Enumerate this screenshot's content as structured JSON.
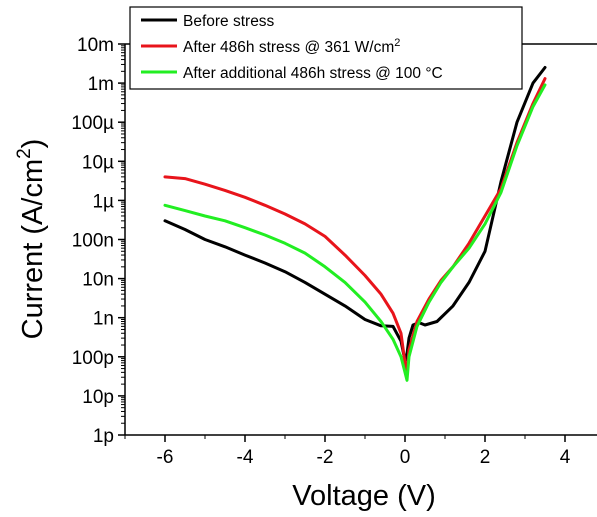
{
  "chart_data": {
    "type": "line",
    "title": "",
    "xlabel": "Voltage (V)",
    "ylabel": "Current (A/cm",
    "ylabel_sup": "2",
    "ylabel_end": ")",
    "xlim": [
      -7,
      4.8
    ],
    "ylim": [
      1e-12,
      0.01
    ],
    "yscale": "log",
    "grid": false,
    "legend_position": "top-right",
    "x_ticks": [
      {
        "value": -6,
        "label": "-6"
      },
      {
        "value": -4,
        "label": "-4"
      },
      {
        "value": -2,
        "label": "-2"
      },
      {
        "value": 0,
        "label": "0"
      },
      {
        "value": 2,
        "label": "2"
      },
      {
        "value": 4,
        "label": "4"
      }
    ],
    "y_ticks": [
      {
        "value": 1e-12,
        "label": "1p"
      },
      {
        "value": 1e-11,
        "label": "10p"
      },
      {
        "value": 1e-10,
        "label": "100p"
      },
      {
        "value": 1e-09,
        "label": "1n"
      },
      {
        "value": 1e-08,
        "label": "10n"
      },
      {
        "value": 1e-07,
        "label": "100n"
      },
      {
        "value": 1e-06,
        "label": "1µ"
      },
      {
        "value": 1e-05,
        "label": "10µ"
      },
      {
        "value": 0.0001,
        "label": "100µ"
      },
      {
        "value": 0.001,
        "label": "1m"
      },
      {
        "value": 0.01,
        "label": "10m"
      }
    ],
    "series": [
      {
        "name": "Before stress",
        "name_sup": "",
        "name_end": "",
        "color": "#000000",
        "x": [
          -6,
          -5.5,
          -5,
          -4.5,
          -4,
          -3.5,
          -3,
          -2.5,
          -2,
          -1.5,
          -1,
          -0.6,
          -0.3,
          -0.1,
          0.0,
          0.05,
          0.1,
          0.2,
          0.35,
          0.5,
          0.8,
          1.2,
          1.6,
          2.0,
          2.4,
          2.8,
          3.2,
          3.5
        ],
        "y": [
          3e-07,
          1.8e-07,
          1e-07,
          6.5e-08,
          4e-08,
          2.5e-08,
          1.5e-08,
          8e-09,
          4e-09,
          2e-09,
          9e-10,
          6.2e-10,
          6e-10,
          2.5e-10,
          8e-11,
          1.2e-10,
          3e-10,
          6.5e-10,
          7.5e-10,
          6.5e-10,
          8e-10,
          2e-09,
          8e-09,
          5e-08,
          3e-06,
          0.0001,
          0.001,
          0.0025
        ]
      },
      {
        "name": "After 486h stress @ 361 W/cm",
        "name_sup": "2",
        "name_end": "",
        "color": "#e8141b",
        "x": [
          -6,
          -5.5,
          -5,
          -4.5,
          -4,
          -3.5,
          -3,
          -2.5,
          -2,
          -1.5,
          -1,
          -0.6,
          -0.3,
          -0.1,
          0.0,
          0.05,
          0.1,
          0.3,
          0.6,
          0.9,
          1.2,
          1.6,
          2.0,
          2.4,
          2.8,
          3.2,
          3.5
        ],
        "y": [
          4e-06,
          3.6e-06,
          2.6e-06,
          1.8e-06,
          1.2e-06,
          7.5e-07,
          4.5e-07,
          2.5e-07,
          1.2e-07,
          4e-08,
          1.2e-08,
          4e-09,
          1.3e-09,
          4e-10,
          7e-11,
          4e-11,
          1.5e-10,
          8e-10,
          3e-09,
          9e-09,
          2e-08,
          8e-08,
          4e-07,
          2e-06,
          3e-05,
          0.0003,
          0.0013
        ]
      },
      {
        "name": "After additional 486h stress @ 100 °C",
        "name_sup": "",
        "name_end": "",
        "color": "#22ee22",
        "x": [
          -6,
          -5.5,
          -5,
          -4.5,
          -4,
          -3.5,
          -3,
          -2.5,
          -2,
          -1.5,
          -1,
          -0.6,
          -0.3,
          -0.1,
          0.0,
          0.05,
          0.1,
          0.3,
          0.6,
          0.9,
          1.2,
          1.6,
          2.0,
          2.4,
          2.8,
          3.2,
          3.5
        ],
        "y": [
          7.5e-07,
          5.5e-07,
          4e-07,
          3e-07,
          2e-07,
          1.3e-07,
          8e-08,
          4.5e-08,
          2e-08,
          8e-09,
          2.5e-09,
          8e-10,
          2.8e-10,
          1e-10,
          4e-11,
          2.5e-11,
          1e-10,
          6e-10,
          2.5e-09,
          8e-09,
          2e-08,
          6e-08,
          2.5e-07,
          1.6e-06,
          2.5e-05,
          0.00025,
          0.0009
        ]
      }
    ]
  }
}
